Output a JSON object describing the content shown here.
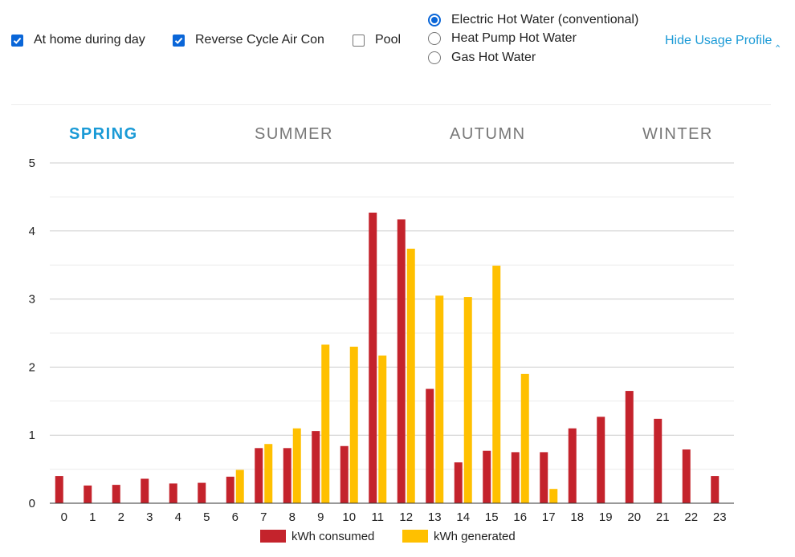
{
  "options": {
    "checkboxes": [
      {
        "label": "At home during day",
        "checked": true
      },
      {
        "label": "Reverse Cycle Air Con",
        "checked": true
      },
      {
        "label": "Pool",
        "checked": false
      }
    ],
    "hot_water": [
      {
        "label": "Electric Hot Water (conventional)",
        "selected": true
      },
      {
        "label": "Heat Pump Hot Water",
        "selected": false
      },
      {
        "label": "Gas Hot Water",
        "selected": false
      }
    ],
    "hide_link": "Hide Usage Profile ‸"
  },
  "tabs": [
    {
      "label": "SPRING",
      "active": true
    },
    {
      "label": "SUMMER",
      "active": false
    },
    {
      "label": "AUTUMN",
      "active": false
    },
    {
      "label": "WINTER",
      "active": false
    }
  ],
  "colors": {
    "accent": "#1a9ad6",
    "consumed": "#c4232c",
    "generated": "#ffc000",
    "grid": "#cccccc"
  },
  "chart_data": {
    "type": "bar",
    "title": "",
    "xlabel": "",
    "ylabel": "",
    "ylim": [
      0,
      5
    ],
    "yticks": [
      0,
      1,
      2,
      3,
      4,
      5
    ],
    "grid": true,
    "legend_placement": "bottom",
    "categories": [
      "0",
      "1",
      "2",
      "3",
      "4",
      "5",
      "6",
      "7",
      "8",
      "9",
      "10",
      "11",
      "12",
      "13",
      "14",
      "15",
      "16",
      "17",
      "18",
      "19",
      "20",
      "21",
      "22",
      "23"
    ],
    "series": [
      {
        "name": "kWh consumed",
        "values": [
          0.4,
          0.26,
          0.27,
          0.36,
          0.29,
          0.3,
          0.39,
          0.81,
          0.81,
          1.06,
          0.84,
          4.27,
          4.17,
          1.68,
          0.6,
          0.77,
          0.75,
          0.75,
          1.1,
          1.27,
          1.65,
          1.24,
          0.79,
          0.4
        ]
      },
      {
        "name": "kWh generated",
        "values": [
          0,
          0,
          0,
          0,
          0,
          0,
          0.49,
          0.87,
          1.1,
          2.33,
          2.3,
          2.17,
          3.74,
          3.05,
          3.03,
          3.49,
          1.9,
          0.21,
          0,
          0,
          0,
          0,
          0,
          0
        ]
      }
    ]
  }
}
